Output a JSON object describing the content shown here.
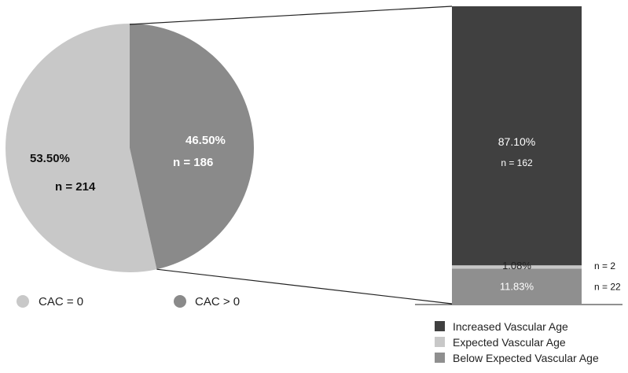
{
  "chart_data": [
    {
      "type": "pie",
      "categories": [
        "CAC = 0",
        "CAC > 0"
      ],
      "values": [
        53.5,
        46.5
      ],
      "percent_labels": [
        "53.50%",
        "46.50%"
      ],
      "count_labels": [
        "n = 214",
        "n = 186"
      ],
      "counts": [
        214,
        186
      ],
      "colors": [
        "#c8c8c8",
        "#8a8a8a"
      ],
      "label_colors": [
        "#111111",
        "#ffffff"
      ],
      "legend": [
        {
          "label": "CAC = 0",
          "color": "#c8c8c8"
        },
        {
          "label": "CAC > 0",
          "color": "#8a8a8a"
        }
      ],
      "legend_position": "bottom"
    },
    {
      "type": "bar",
      "stacked": true,
      "categories": [
        "CAC > 0"
      ],
      "ylim": [
        0,
        100
      ],
      "series": [
        {
          "name": "Below Expected Vascular Age",
          "values": [
            11.83
          ],
          "label": "11.83%",
          "n_label": "n = 22",
          "color": "#8f8f8f",
          "text_color": "#ffffff"
        },
        {
          "name": "Expected Vascular Age",
          "values": [
            1.08
          ],
          "label": "1.08%",
          "n_label": "n = 2",
          "color": "#c8c8c8",
          "text_color": "#222222"
        },
        {
          "name": "Increased Vascular Age",
          "values": [
            87.1
          ],
          "label": "87.10%",
          "n_label": "n = 162",
          "color": "#404040",
          "text_color": "#ffffff"
        }
      ],
      "legend": [
        {
          "label": "Increased Vascular Age",
          "color": "#404040"
        },
        {
          "label": "Expected Vascular Age",
          "color": "#c8c8c8"
        },
        {
          "label": "Below Expected Vascular Age",
          "color": "#8f8f8f"
        }
      ],
      "legend_position": "bottom-right"
    }
  ]
}
